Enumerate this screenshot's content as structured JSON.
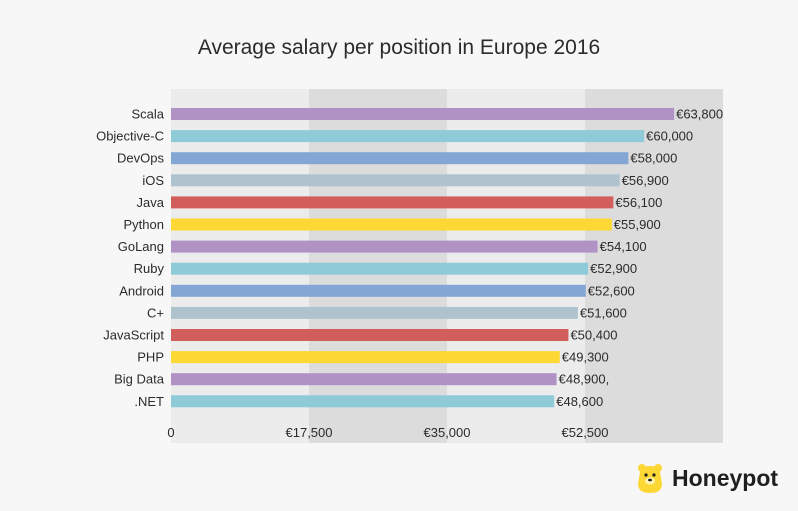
{
  "chart_data": {
    "type": "bar",
    "orientation": "horizontal",
    "title": "Average salary per position in Europe 2016",
    "categories": [
      "Scala",
      "Objective-C",
      "DevOps",
      "iOS",
      "Java",
      "Python",
      "GoLang",
      "Ruby",
      "Android",
      "C+",
      "JavaScript",
      "PHP",
      "Big Data",
      ".NET"
    ],
    "values": [
      63800,
      60000,
      58000,
      56900,
      56100,
      55900,
      54100,
      52900,
      52600,
      51600,
      50400,
      49300,
      48900,
      48600
    ],
    "value_labels": [
      "€63,800",
      "€60,000",
      "€58,000",
      "€56,900",
      "€56,100",
      "€55,900",
      "€54,100",
      "€52,900",
      "€52,600",
      "€51,600",
      "€50,400",
      "€49,300",
      "€48,900,",
      "€48,600"
    ],
    "colors": [
      "#b093c4",
      "#8fcad8",
      "#84a6d4",
      "#afc3ce",
      "#d15e5b",
      "#fdd835",
      "#b093c4",
      "#8fcad8",
      "#84a6d4",
      "#afc3ce",
      "#d15e5b",
      "#fdd835",
      "#b093c4",
      "#8fcad8"
    ],
    "xlim": [
      0,
      70000
    ],
    "x_ticks": [
      0,
      17500,
      35000,
      52500
    ],
    "x_tick_labels": [
      "0",
      "€17,500",
      "€35,000",
      "€52,500"
    ],
    "band_colors": [
      "#ececec",
      "#dcdcdc"
    ],
    "xlabel": "",
    "ylabel": ""
  },
  "brand": {
    "name": "Honeypot",
    "logo_icon": "bear-icon",
    "logo_color": "#fdd835"
  }
}
